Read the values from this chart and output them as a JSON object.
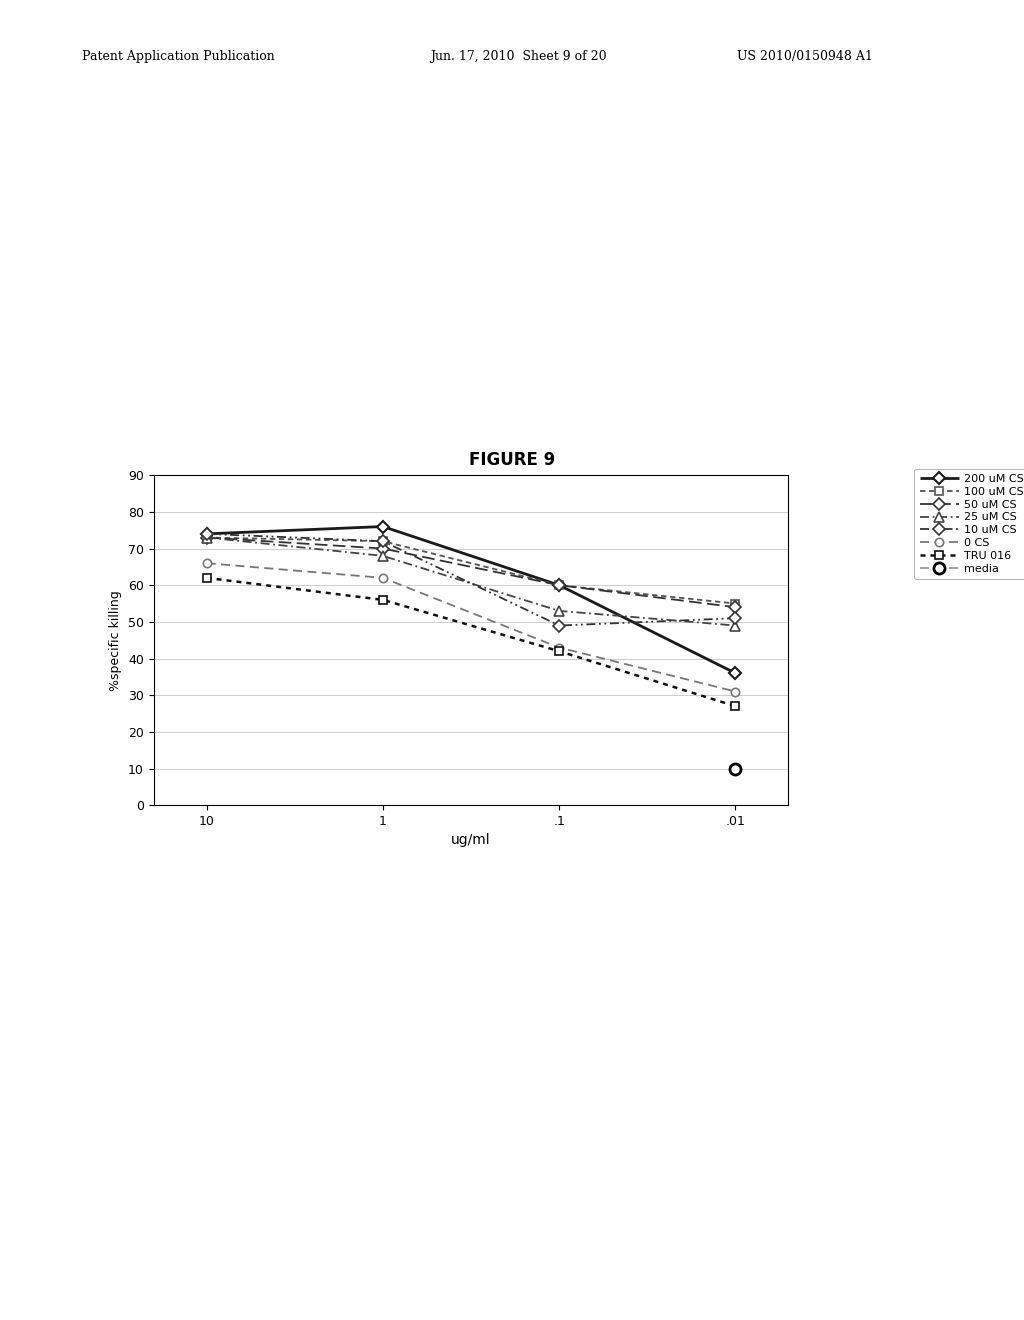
{
  "title": "FIGURE 9",
  "xlabel": "ug/ml",
  "ylabel": "%specific killing",
  "xticklabels": [
    "10",
    "1",
    ".1",
    ".01"
  ],
  "x_values": [
    10,
    1,
    0.1,
    0.01
  ],
  "ylim": [
    0,
    90
  ],
  "yticks": [
    0,
    10,
    20,
    30,
    40,
    50,
    60,
    70,
    80,
    90
  ],
  "series": [
    {
      "label": "200 uM CS",
      "y": [
        74,
        76,
        60,
        36
      ],
      "marker": "D",
      "linestyle_key": "solid_bold"
    },
    {
      "label": "100 uM CS",
      "y": [
        73,
        72,
        60,
        55
      ],
      "marker": "s",
      "linestyle_key": "dotted_fine"
    },
    {
      "label": "50 uM CS",
      "y": [
        73,
        70,
        60,
        54
      ],
      "marker": "D",
      "linestyle_key": "dash_long"
    },
    {
      "label": "25 uM CS",
      "y": [
        73,
        68,
        53,
        49
      ],
      "marker": "^",
      "linestyle_key": "dashdot"
    },
    {
      "label": "10 uM CS",
      "y": [
        74,
        72,
        49,
        51
      ],
      "marker": "D",
      "linestyle_key": "dashdotdot"
    },
    {
      "label": "0 CS",
      "y": [
        66,
        62,
        43,
        31
      ],
      "marker": "o",
      "linestyle_key": "dash_med"
    },
    {
      "label": "TRU 016",
      "y": [
        62,
        56,
        42,
        27
      ],
      "marker": "s",
      "linestyle_key": "dotted_bold"
    },
    {
      "label": "media",
      "y": [
        null,
        null,
        null,
        10
      ],
      "marker": "o",
      "linestyle_key": "dash_gray"
    }
  ],
  "background_color": "#ffffff",
  "grid_color": "#bbbbbb",
  "patent_left": "Patent Application Publication",
  "patent_mid": "Jun. 17, 2010  Sheet 9 of 20",
  "patent_right": "US 2010/0150948 A1"
}
